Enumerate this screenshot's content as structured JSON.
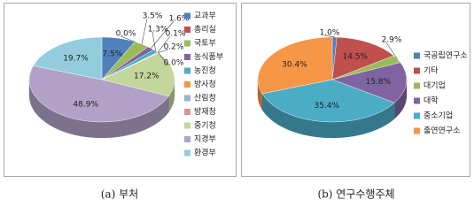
{
  "chart_data": [
    {
      "type": "pie3d",
      "caption": "(a) 부처",
      "categories": [
        "교과부",
        "총리실",
        "국토부",
        "농식품부",
        "농진청",
        "방사청",
        "산림청",
        "방재청",
        "중기청",
        "지경부",
        "환경부"
      ],
      "values": [
        7.5,
        0.0,
        3.5,
        1.6,
        1.3,
        0.1,
        0.2,
        0.0,
        17.2,
        48.9,
        19.7
      ],
      "value_labels": [
        "7.5%",
        "0.0%",
        "3.5%",
        "1.6%",
        "1.3%",
        "0.1%",
        "0.2%",
        "0.0%",
        "17.2%",
        "48.9%",
        "19.7%"
      ],
      "colors": [
        "#4f81bd",
        "#c0504d",
        "#9bbb59",
        "#8064a2",
        "#4bacc6",
        "#f79646",
        "#95b3d7",
        "#da9694",
        "#c3d69b",
        "#b2a1c7",
        "#93cddd"
      ],
      "legend": "right"
    },
    {
      "type": "pie3d",
      "caption": "(b) 연구수행주체",
      "categories": [
        "국공립연구소",
        "기타",
        "대기업",
        "대학",
        "중소기업",
        "출연연구소"
      ],
      "values": [
        1.0,
        14.5,
        2.9,
        15.8,
        35.4,
        30.4
      ],
      "value_labels": [
        "1.0%",
        "14.5%",
        "2.9%",
        "15.8%",
        "35.4%",
        "30.4%"
      ],
      "colors": [
        "#4f81bd",
        "#c0504d",
        "#9bbb59",
        "#8064a2",
        "#4bacc6",
        "#f79646"
      ],
      "legend": "right"
    }
  ]
}
